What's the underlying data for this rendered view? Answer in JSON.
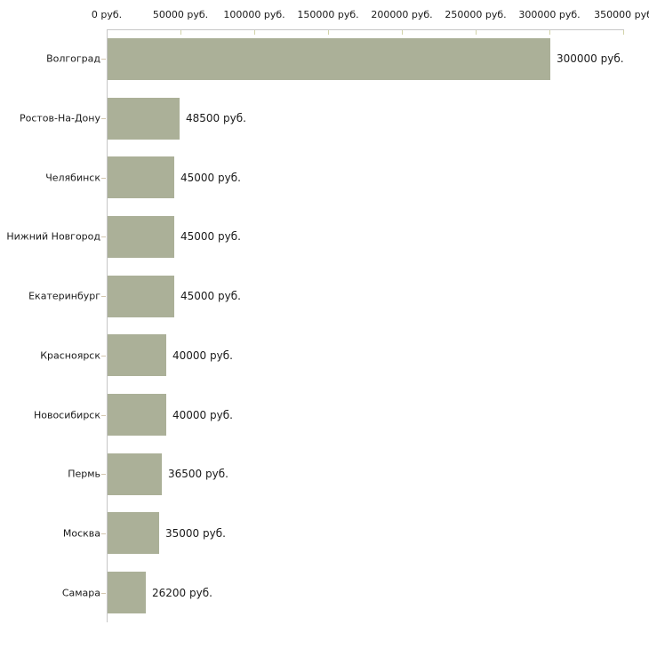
{
  "chart_data": {
    "type": "bar",
    "orientation": "horizontal",
    "title": "",
    "xlabel": "",
    "ylabel": "",
    "grid": false,
    "legend_position": "none",
    "categories": [
      "Волгоград",
      "Ростов-На-Дону",
      "Челябинск",
      "Нижний Новгород",
      "Екатеринбург",
      "Красноярск",
      "Новосибирск",
      "Пермь",
      "Москва",
      "Самара"
    ],
    "values": [
      300000,
      48500,
      45000,
      45000,
      45000,
      40000,
      40000,
      36500,
      35000,
      26200
    ],
    "value_labels": [
      "300000 руб.",
      "48500 руб.",
      "45000 руб.",
      "45000 руб.",
      "45000 руб.",
      "40000 руб.",
      "40000 руб.",
      "36500 руб.",
      "35000 руб.",
      "26200 руб."
    ],
    "xlim": [
      0,
      350000
    ],
    "x_ticks": [
      {
        "value": 0,
        "label": "0 руб."
      },
      {
        "value": 50000,
        "label": "50000 руб."
      },
      {
        "value": 100000,
        "label": "100000 руб."
      },
      {
        "value": 150000,
        "label": "150000 руб."
      },
      {
        "value": 200000,
        "label": "200000 руб."
      },
      {
        "value": 250000,
        "label": "250000 руб."
      },
      {
        "value": 300000,
        "label": "300000 руб."
      },
      {
        "value": 350000,
        "label": "350000 руб"
      }
    ],
    "colors": {
      "bar": "#abb098",
      "axis_line": "#c6c6c6",
      "x_tick_mark": "#d2d3a8",
      "category_tick_mark": "#d3c6ae",
      "text": "#1a1a1a",
      "background": "#ffffff"
    }
  }
}
